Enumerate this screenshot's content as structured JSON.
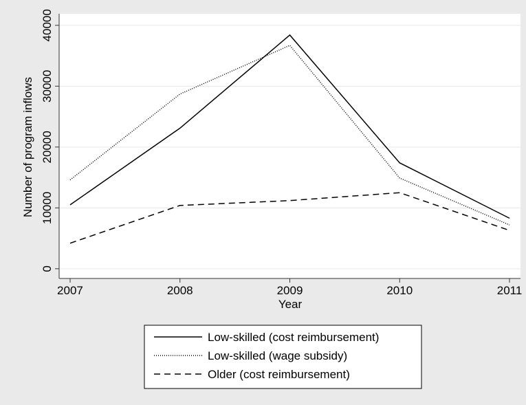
{
  "chart_data": {
    "type": "line",
    "x": [
      2007,
      2008,
      2009,
      2010,
      2011
    ],
    "xlabel": "Year",
    "ylabel": "Number of program inflows",
    "series": [
      {
        "name": "Low-skilled (cost reimbursement)",
        "color": "#000000",
        "style": "solid",
        "values": [
          10500,
          23100,
          38400,
          17400,
          8300
        ]
      },
      {
        "name": "Low-skilled (wage subsidy)",
        "color": "#000000",
        "style": "dotted",
        "values": [
          14600,
          28700,
          36700,
          14900,
          7200
        ]
      },
      {
        "name": "Older (cost reimbursement)",
        "color": "#000000",
        "style": "dashed",
        "values": [
          4200,
          10400,
          11200,
          12500,
          6300
        ]
      }
    ],
    "xlim": [
      2006.9,
      2011.1
    ],
    "xticks": [
      2007,
      2008,
      2009,
      2010,
      2011
    ],
    "ylim": [
      -1600,
      41900
    ],
    "yticks": [
      0,
      10000,
      20000,
      30000,
      40000
    ],
    "grid": true,
    "legend": "bottom"
  }
}
